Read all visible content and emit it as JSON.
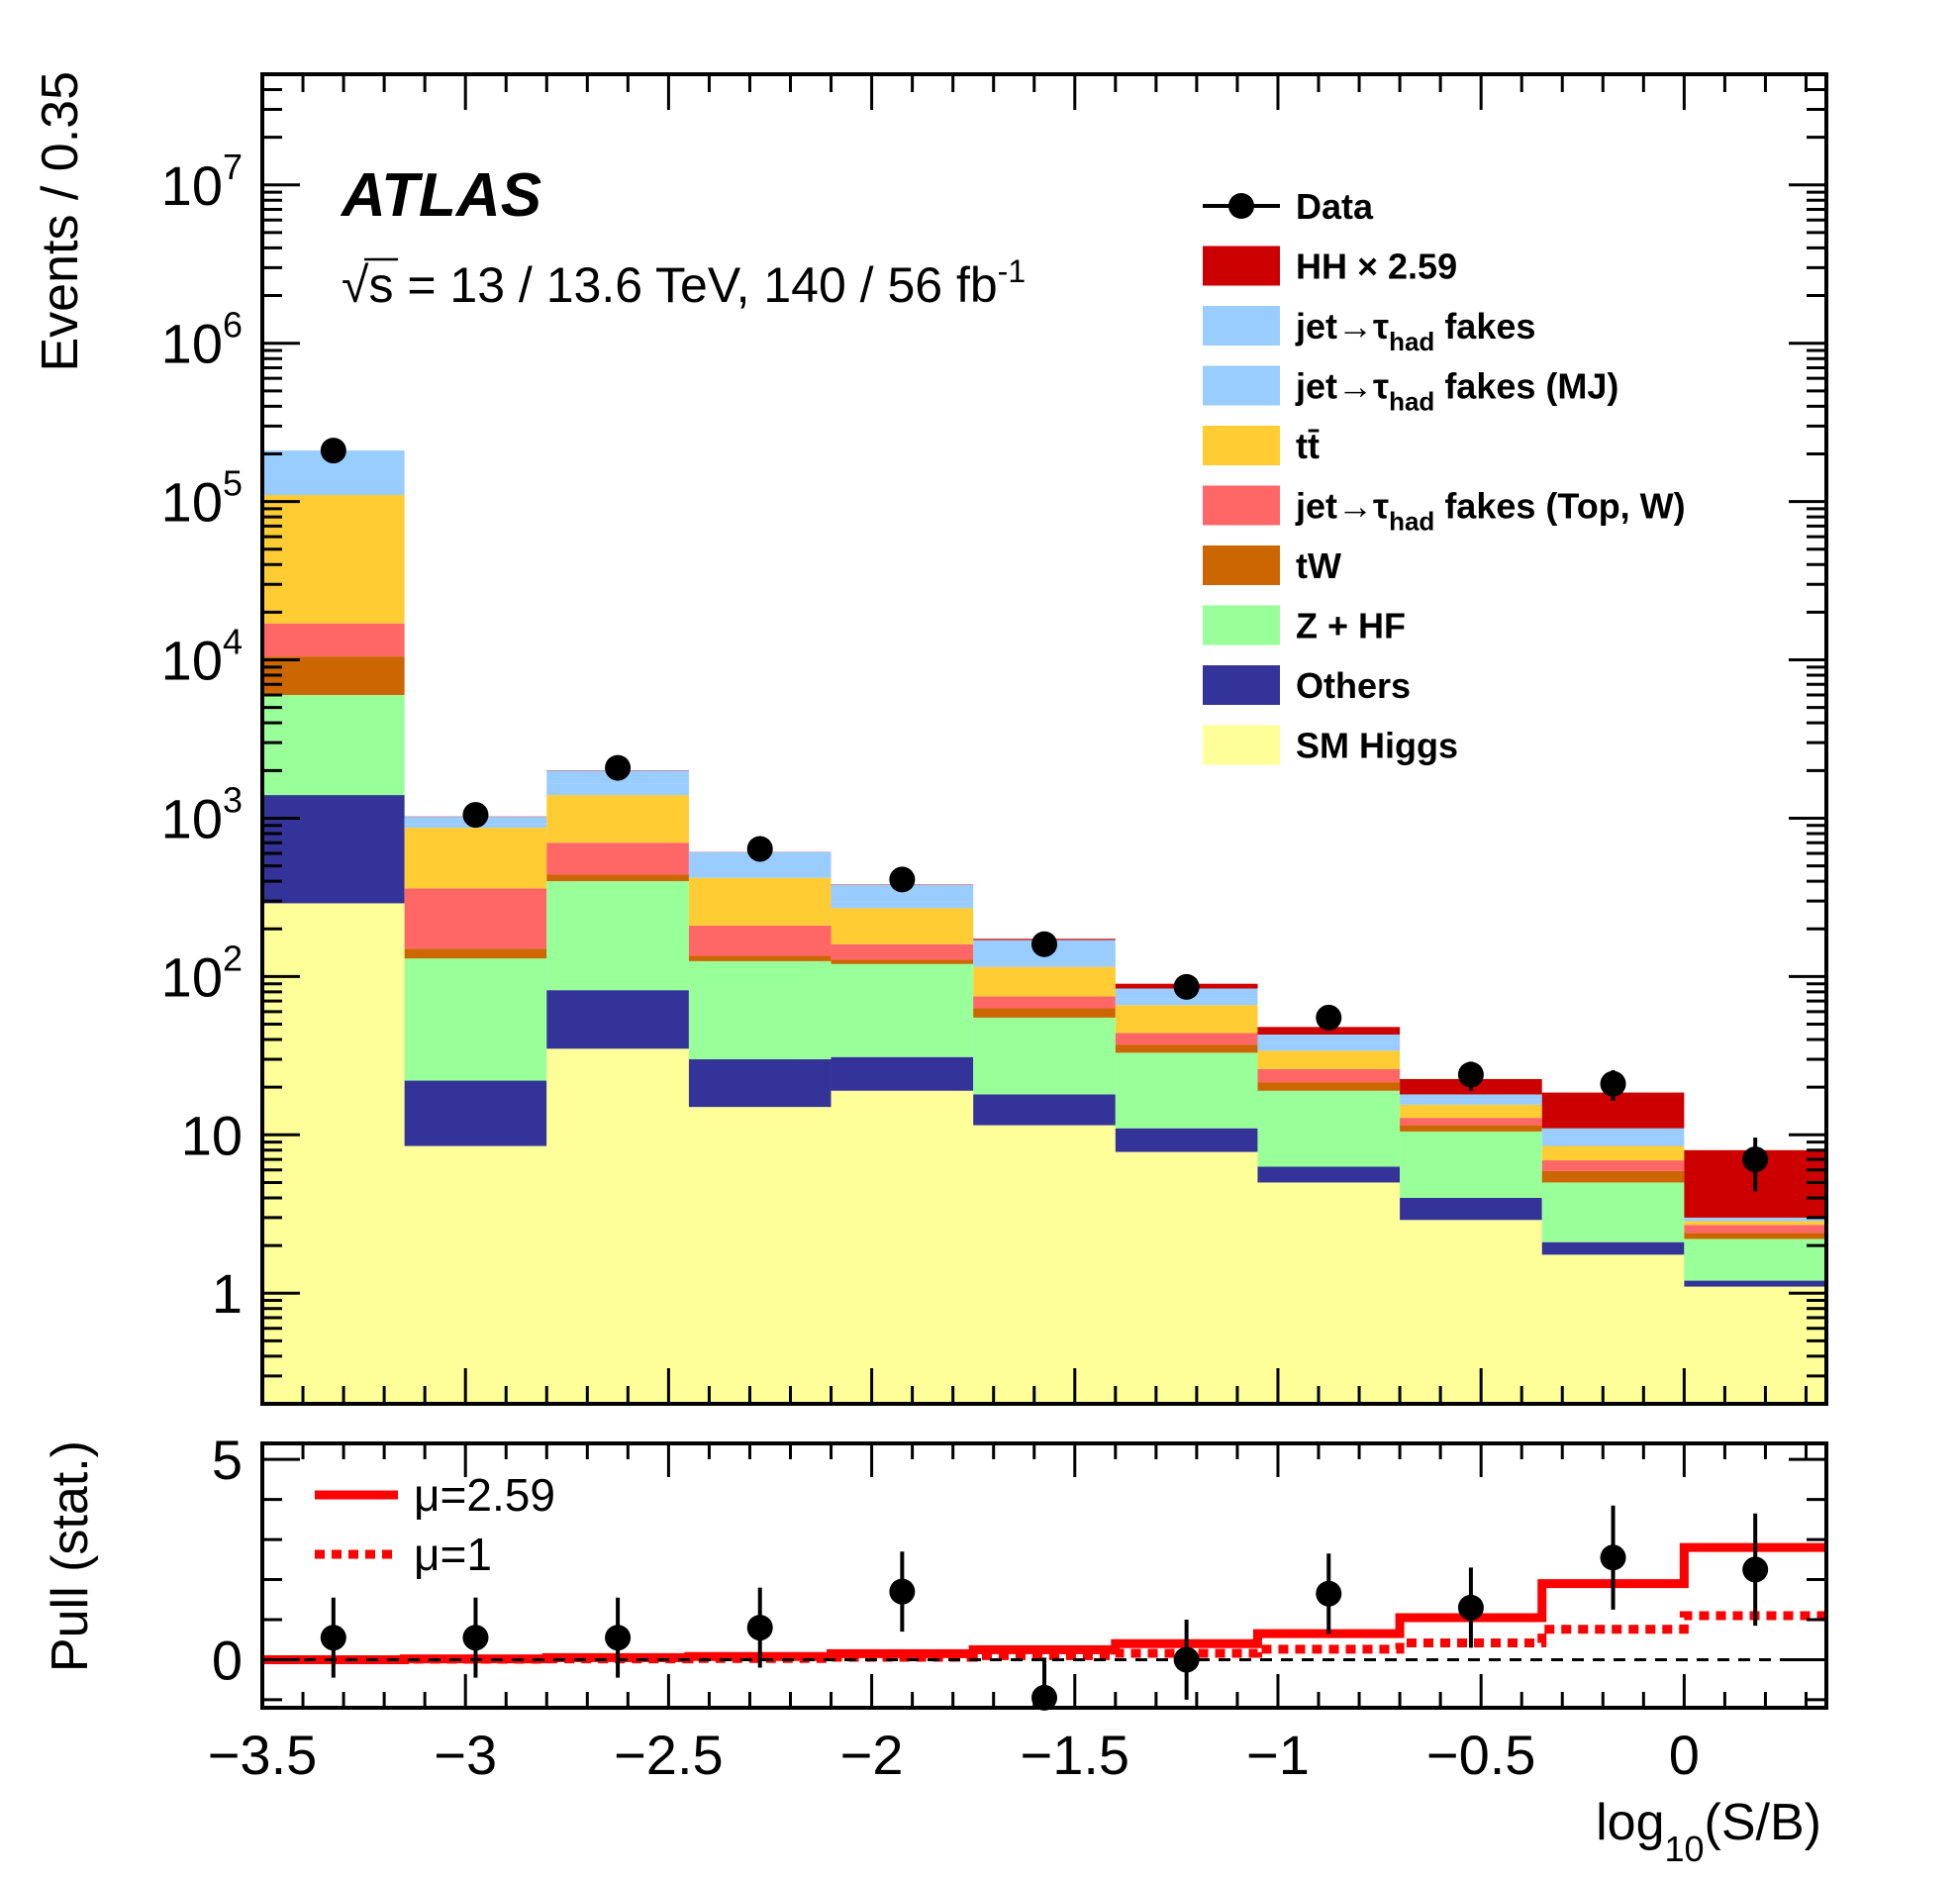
{
  "annotations": {
    "atlas_label": "ATLAS",
    "energy_label": "√s = 13 / 13.6 TeV, 140 / 56 fb",
    "energy_label_sup": "-1"
  },
  "chart_data": [
    {
      "type": "bar",
      "subtype": "stacked-histogram",
      "ylabel": "Events / 0.35",
      "yscale": "log",
      "ylim": [
        0.2,
        50000000
      ],
      "xlim": [
        -3.5,
        0.35
      ],
      "bin_edges": [
        -3.5,
        -3.15,
        -2.8,
        -2.45,
        -2.1,
        -1.75,
        -1.4,
        -1.05,
        -0.7,
        -0.35,
        0.0,
        0.35
      ],
      "y_tick_labels": [
        {
          "value": 1,
          "base": "1",
          "exp": ""
        },
        {
          "value": 10,
          "base": "10",
          "exp": ""
        },
        {
          "value": 100,
          "base": "10",
          "exp": "2"
        },
        {
          "value": 1000,
          "base": "10",
          "exp": "3"
        },
        {
          "value": 10000,
          "base": "10",
          "exp": "4"
        },
        {
          "value": 100000,
          "base": "10",
          "exp": "5"
        },
        {
          "value": 1000000,
          "base": "10",
          "exp": "6"
        },
        {
          "value": 10000000,
          "base": "10",
          "exp": "7"
        }
      ],
      "stack_order_bottom_to_top": [
        "SM Higgs",
        "Others",
        "Z + HF",
        "tW",
        "jet→τhad fakes (Top, W)",
        "tt̄",
        "jet→τhad fakes (MJ)",
        "jet→τhad fakes",
        "HH × 2.59"
      ],
      "stack_cumulative_tops": [
        {
          "name": "SM Higgs",
          "color": "#ffff99",
          "values": [
            290,
            8.5,
            35,
            15,
            19,
            11.5,
            7.8,
            5.0,
            2.9,
            1.75,
            1.1
          ]
        },
        {
          "name": "Others",
          "color": "#333399",
          "values": [
            1400,
            22,
            82,
            30,
            31,
            18,
            11,
            6.3,
            4.0,
            2.1,
            1.2
          ]
        },
        {
          "name": "Z + HF",
          "color": "#99ff99",
          "values": [
            6000,
            130,
            400,
            125,
            120,
            55,
            33,
            19,
            10.5,
            5.0,
            2.2
          ]
        },
        {
          "name": "tW",
          "color": "#cc6600",
          "values": [
            10500,
            150,
            440,
            135,
            128,
            63,
            37,
            21.5,
            11.5,
            5.9,
            2.4
          ]
        },
        {
          "name": "jet→τhad fakes (Top, W)",
          "color": "#ff6666",
          "values": [
            17000,
            360,
            700,
            210,
            160,
            75,
            44,
            26,
            12.8,
            6.9,
            2.7
          ]
        },
        {
          "name": "tt̄",
          "color": "#ffcc33",
          "values": [
            110000,
            870,
            1400,
            420,
            270,
            115,
            66,
            34,
            15.5,
            8.5,
            2.85
          ]
        },
        {
          "name": "jet→τhad fakes (MJ)",
          "color": "#99ccff",
          "values": [
            160000,
            920,
            1650,
            490,
            300,
            140,
            73,
            38,
            16.8,
            9.7,
            2.95
          ]
        },
        {
          "name": "jet→τhad fakes",
          "color": "#99ccff",
          "values": [
            210000,
            1020,
            2000,
            610,
            380,
            170,
            84,
            43,
            18,
            11,
            3.0
          ]
        },
        {
          "name": "HH × 2.59",
          "color": "#cc0000",
          "values": [
            210000,
            1025,
            2010,
            612,
            382,
            173,
            90,
            48,
            22.5,
            18.5,
            8.0
          ]
        }
      ],
      "data_points": {
        "name": "Data",
        "x": [
          -3.325,
          -2.975,
          -2.625,
          -2.275,
          -1.925,
          -1.575,
          -1.225,
          -0.875,
          -0.525,
          -0.175,
          0.175
        ],
        "y": [
          210000,
          1050,
          2080,
          640,
          410,
          160,
          86,
          55,
          24,
          21,
          7
        ],
        "yerr_low": [
          460,
          33,
          46,
          26,
          20,
          13,
          9,
          7.4,
          5,
          4.6,
          2.6
        ],
        "yerr_high": [
          460,
          33,
          46,
          26,
          20,
          13,
          9,
          7.4,
          5,
          4.6,
          2.6
        ]
      },
      "legend": {
        "placement": "top-right",
        "entries": [
          {
            "label": "Data",
            "marker": "point",
            "color": "#000000"
          },
          {
            "label": "HH",
            "label_suffix": "× 2.59",
            "marker": "box",
            "color": "#cc0000"
          },
          {
            "label": "jet→τ",
            "sub": "had",
            "label_suffix": "fakes",
            "marker": "box",
            "color": "#99ccff"
          },
          {
            "label": "jet→τ",
            "sub": "had",
            "label_suffix": "fakes (MJ)",
            "marker": "box",
            "color": "#99ccff"
          },
          {
            "label": "tt̄",
            "marker": "box",
            "color": "#ffcc33"
          },
          {
            "label": "jet→τ",
            "sub": "had",
            "label_suffix": "fakes (Top, W)",
            "marker": "box",
            "color": "#ff6666"
          },
          {
            "label": "tW",
            "marker": "box",
            "color": "#cc6600"
          },
          {
            "label": "Z + HF",
            "marker": "box",
            "color": "#99ff99"
          },
          {
            "label": "Others",
            "marker": "box",
            "color": "#333399"
          },
          {
            "label": "SM Higgs",
            "marker": "box",
            "color": "#ffff99"
          }
        ]
      }
    },
    {
      "type": "scatter",
      "subtype": "pull-panel",
      "ylabel": "Pull (stat.)",
      "xlabel": "log",
      "xlabel_sub": "10",
      "xlabel_suffix": "(S/B)",
      "ylim": [
        -1.2,
        5.4
      ],
      "xlim": [
        -3.5,
        0.35
      ],
      "x_ticks": [
        -3.5,
        -3,
        -2.5,
        -2,
        -1.5,
        -1,
        -0.5,
        0
      ],
      "x_tick_labels": [
        "−3.5",
        "−3",
        "−2.5",
        "−2",
        "−1.5",
        "−1",
        "−0.5",
        "0"
      ],
      "y_ticks": [
        0,
        5
      ],
      "y_tick_labels": [
        "0",
        "5"
      ],
      "bin_edges": [
        -3.5,
        -3.15,
        -2.8,
        -2.45,
        -2.1,
        -1.75,
        -1.4,
        -1.05,
        -0.7,
        -0.35,
        0.0,
        0.35
      ],
      "series": [
        {
          "name": "μ=2.59",
          "style": "solid",
          "color": "#ff0000",
          "values": [
            0.0,
            0.02,
            0.05,
            0.08,
            0.15,
            0.25,
            0.4,
            0.65,
            1.05,
            1.9,
            2.8
          ]
        },
        {
          "name": "μ=1",
          "style": "dotted",
          "color": "#ff0000",
          "values": [
            0.0,
            0.01,
            0.02,
            0.03,
            0.06,
            0.1,
            0.16,
            0.26,
            0.42,
            0.76,
            1.1
          ]
        }
      ],
      "reference_line": {
        "y": 0,
        "style": "dashed",
        "color": "#000000"
      },
      "data_points": {
        "x": [
          -3.325,
          -2.975,
          -2.625,
          -2.275,
          -1.925,
          -1.575,
          -1.225,
          -0.875,
          -0.525,
          -0.175,
          0.175
        ],
        "y": [
          0.55,
          0.55,
          0.55,
          0.8,
          1.7,
          -0.95,
          0.0,
          1.65,
          1.3,
          2.55,
          2.25
        ],
        "yerr": [
          1.0,
          1.0,
          1.0,
          1.0,
          1.0,
          1.0,
          1.0,
          1.0,
          1.0,
          1.3,
          1.4
        ]
      },
      "legend": {
        "placement": "top-left",
        "entries": [
          {
            "label": "μ=2.59",
            "style": "solid",
            "color": "#ff0000"
          },
          {
            "label": "μ=1",
            "style": "dotted",
            "color": "#ff0000"
          }
        ]
      }
    }
  ]
}
